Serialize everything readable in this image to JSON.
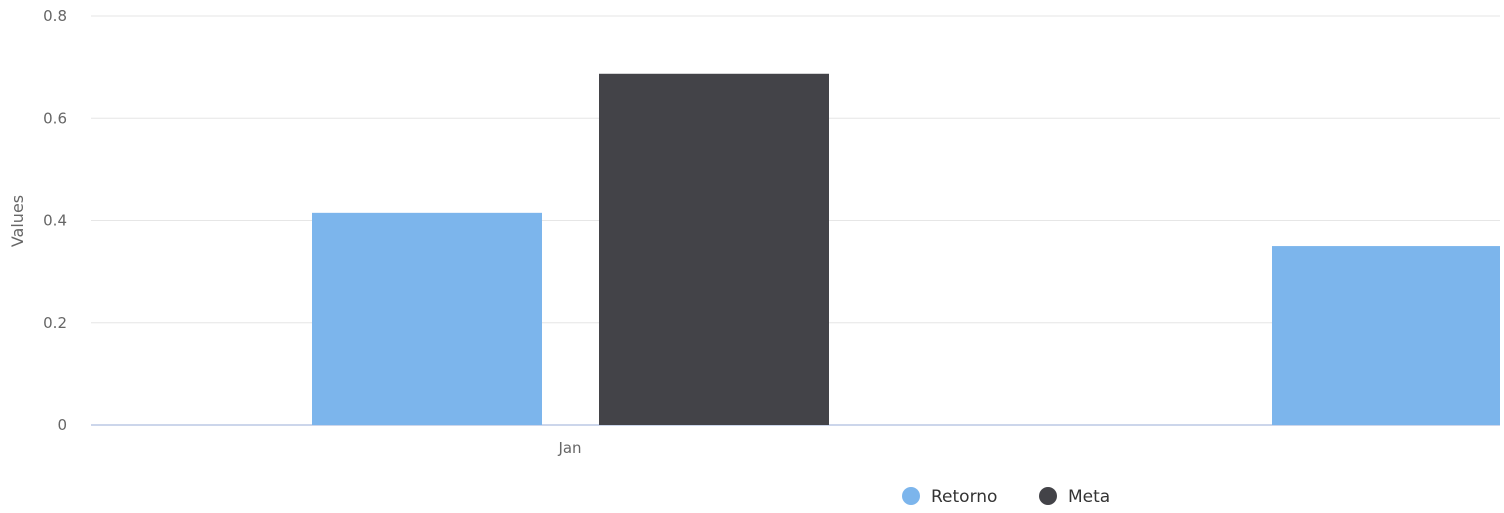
{
  "chart_data": {
    "type": "bar",
    "categories": [
      "Jan",
      ""
    ],
    "series": [
      {
        "name": "Retorno",
        "values": [
          0.415,
          0.35
        ],
        "color": "#7cb5ec"
      },
      {
        "name": "Meta",
        "values": [
          0.687,
          null
        ],
        "color": "#434348"
      }
    ],
    "ylabel": "Values",
    "ylim": [
      0,
      0.8
    ],
    "yticks": [
      0,
      0.2,
      0.4,
      0.6,
      0.8
    ],
    "ytick_labels": [
      "0",
      "0.2",
      "0.4",
      "0.6",
      "0.8"
    ],
    "grid": true,
    "legend_position": "bottom-center"
  }
}
